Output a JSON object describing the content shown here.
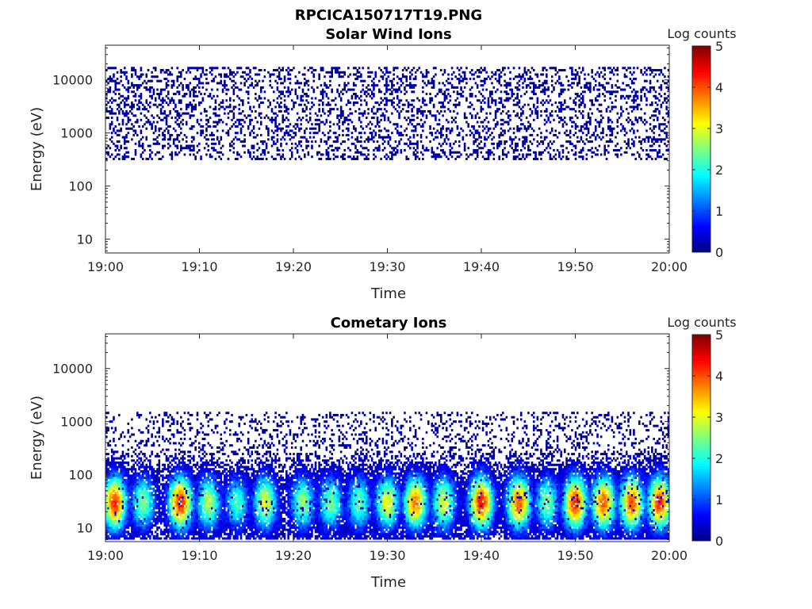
{
  "figure_title": "RPCICA150717T19.PNG",
  "chart_data": [
    {
      "type": "heatmap",
      "title": "Solar Wind Ions",
      "xlabel": "Time",
      "ylabel": "Energy (eV)",
      "x_ticks": [
        "19:00",
        "19:10",
        "19:20",
        "19:30",
        "19:40",
        "19:50",
        "20:00"
      ],
      "x_range": [
        "19:00",
        "20:00"
      ],
      "y_scale": "log",
      "y_ticks": [
        10,
        100,
        1000,
        10000
      ],
      "y_tick_labels": [
        "10",
        "100",
        "1000",
        "10000"
      ],
      "y_range": [
        5.5,
        45000
      ],
      "colorbar": {
        "label": "Log counts",
        "range": [
          0,
          5
        ],
        "ticks": [
          "0",
          "1",
          "2",
          "3",
          "4",
          "5"
        ],
        "colormap": "jet"
      },
      "features": [
        {
          "kind": "scattered",
          "energy_range_eV": [
            300,
            17000
          ],
          "log_counts": [
            0,
            0.3
          ],
          "density": 0.28,
          "seed": 7
        }
      ]
    },
    {
      "type": "heatmap",
      "title": "Cometary Ions",
      "xlabel": "Time",
      "ylabel": "Energy (eV)",
      "x_ticks": [
        "19:00",
        "19:10",
        "19:20",
        "19:30",
        "19:40",
        "19:50",
        "20:00"
      ],
      "x_range": [
        "19:00",
        "20:00"
      ],
      "y_scale": "log",
      "y_ticks": [
        10,
        100,
        1000,
        10000
      ],
      "y_tick_labels": [
        "10",
        "100",
        "1000",
        "10000"
      ],
      "y_range": [
        5.5,
        45000
      ],
      "colorbar": {
        "label": "Log counts",
        "range": [
          0,
          5
        ],
        "ticks": [
          "0",
          "1",
          "2",
          "3",
          "4",
          "5"
        ],
        "colormap": "jet"
      },
      "features": [
        {
          "kind": "scattered",
          "energy_range_eV": [
            100,
            1500
          ],
          "log_counts": [
            0,
            0.3
          ],
          "density": 0.2,
          "seed": 11
        },
        {
          "kind": "scattered",
          "energy_range_eV": [
            6,
            100
          ],
          "log_counts": [
            0,
            0.8
          ],
          "density": 0.42,
          "seed": 23
        },
        {
          "kind": "bursts",
          "energy_range_eV": [
            6,
            250
          ],
          "peak_energy_eV": 30,
          "times": [
            "19:01",
            "19:04",
            "19:08",
            "19:11",
            "19:14",
            "19:17",
            "19:21",
            "19:24",
            "19:27",
            "19:30",
            "19:33",
            "19:36",
            "19:40",
            "19:44",
            "19:47",
            "19:50",
            "19:53",
            "19:56",
            "19:59"
          ],
          "peak_log_counts": [
            4.2,
            2.5,
            4.3,
            2.8,
            2.2,
            3.0,
            2.6,
            2.5,
            2.4,
            3.1,
            3.8,
            3.0,
            4.3,
            4.0,
            2.5,
            4.2,
            4.0,
            4.1,
            4.2
          ]
        }
      ]
    }
  ]
}
